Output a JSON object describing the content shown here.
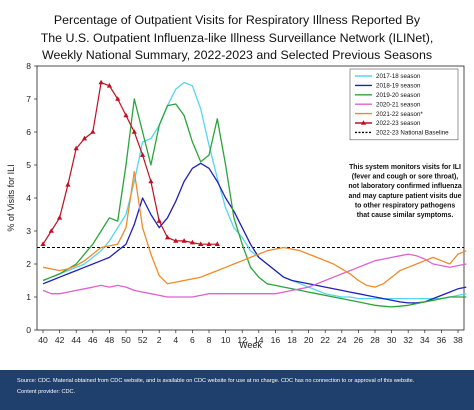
{
  "title_lines": [
    "Percentage of Outpatient Visits for Respiratory Illness Reported By",
    "The U.S. Outpatient Influenza-like Illness Surveillance Network (ILINet),",
    "Weekly National Summary, 2022-2023 and Selected Previous Seasons"
  ],
  "footer": {
    "source": "Source: CDC. Material obtained from CDC website, and is available on CDC website for use at no charge. CDC has no connection to or approval of this website.",
    "provider": "Content provider: CDC."
  },
  "colors": {
    "s2017": "#55d6f0",
    "s2018": "#2020b8",
    "s2019": "#2aa43a",
    "s2020": "#e060d0",
    "s2021": "#f08a28",
    "s2022": "#c01020",
    "baseline": "#000000",
    "footer_bg": "#1f3f6c"
  },
  "chart_data": {
    "type": "line",
    "title": "Percentage of Outpatient Visits for Respiratory Illness Reported By The U.S. Outpatient Influenza-like Illness Surveillance Network (ILINet), Weekly National Summary, 2022-2023 and Selected Previous Seasons",
    "xlabel": "Week",
    "ylabel": "% of Visits for ILI",
    "x_tick_labels": [
      "40",
      "42",
      "44",
      "46",
      "48",
      "50",
      "52",
      "2",
      "4",
      "6",
      "8",
      "10",
      "12",
      "14",
      "16",
      "18",
      "20",
      "22",
      "24",
      "26",
      "28",
      "30",
      "32",
      "34",
      "36",
      "38"
    ],
    "y_tick_labels": [
      "0",
      "1",
      "2",
      "3",
      "4",
      "5",
      "6",
      "7",
      "8"
    ],
    "ylim": [
      0,
      8
    ],
    "grid": false,
    "legend_position": "top-right",
    "note": [
      "This system monitors visits for ILI",
      "(fever and cough or sore throat),",
      "not laboratory confirmed influenza",
      "and may capture patient visits due",
      "to other respiratory pathogens",
      "that cause similar symptoms."
    ],
    "baseline": {
      "name": "2022-23 National Baseline",
      "value": 2.5
    },
    "series": [
      {
        "name": "2017-18 season",
        "key": "s2017",
        "marker": false,
        "values": [
          1.5,
          1.6,
          1.7,
          1.8,
          1.9,
          2.0,
          2.2,
          2.4,
          2.7,
          3.1,
          3.5,
          4.5,
          5.7,
          5.8,
          6.2,
          6.8,
          7.3,
          7.5,
          7.4,
          6.7,
          5.6,
          4.6,
          3.7,
          3.1,
          2.8,
          2.4,
          2.2,
          2.0,
          1.8,
          1.6,
          1.5,
          1.4,
          1.3,
          1.2,
          1.1,
          1.05,
          1.0,
          1.0,
          0.95,
          0.95,
          0.95,
          0.95,
          0.95,
          0.95,
          0.95,
          0.95,
          0.95,
          0.95,
          0.95,
          1.0,
          1.05,
          1.1
        ]
      },
      {
        "name": "2018-19 season",
        "key": "s2018",
        "marker": false,
        "values": [
          1.4,
          1.5,
          1.6,
          1.7,
          1.8,
          1.9,
          2.0,
          2.1,
          2.2,
          2.4,
          2.6,
          3.2,
          4.0,
          3.5,
          3.1,
          3.4,
          3.9,
          4.5,
          4.9,
          5.05,
          4.9,
          4.5,
          4.0,
          3.6,
          3.1,
          2.6,
          2.2,
          2.0,
          1.8,
          1.6,
          1.5,
          1.45,
          1.4,
          1.35,
          1.3,
          1.25,
          1.2,
          1.15,
          1.1,
          1.05,
          1.0,
          0.95,
          0.9,
          0.85,
          0.82,
          0.82,
          0.85,
          0.95,
          1.05,
          1.15,
          1.25,
          1.3
        ]
      },
      {
        "name": "2019-20 season",
        "key": "s2019",
        "marker": false,
        "values": [
          1.5,
          1.6,
          1.7,
          1.85,
          2.0,
          2.3,
          2.6,
          3.0,
          3.4,
          3.3,
          5.0,
          7.0,
          6.0,
          5.0,
          6.2,
          6.8,
          6.85,
          6.5,
          5.7,
          5.1,
          5.3,
          6.4,
          5.0,
          3.4,
          2.6,
          1.9,
          1.6,
          1.4,
          1.35,
          1.3,
          1.25,
          1.2,
          1.15,
          1.1,
          1.05,
          1.0,
          0.95,
          0.9,
          0.85,
          0.8,
          0.75,
          0.72,
          0.7,
          0.72,
          0.75,
          0.8,
          0.85,
          0.9,
          0.95,
          1.0,
          1.0,
          1.0
        ]
      },
      {
        "name": "2020-21 season",
        "key": "s2020",
        "marker": false,
        "values": [
          1.2,
          1.1,
          1.1,
          1.15,
          1.2,
          1.25,
          1.3,
          1.35,
          1.3,
          1.35,
          1.3,
          1.2,
          1.15,
          1.1,
          1.05,
          1.0,
          1.0,
          1.0,
          1.0,
          1.05,
          1.1,
          1.1,
          1.1,
          1.1,
          1.1,
          1.1,
          1.1,
          1.1,
          1.1,
          1.15,
          1.2,
          1.25,
          1.3,
          1.4,
          1.5,
          1.6,
          1.7,
          1.8,
          1.9,
          2.0,
          2.1,
          2.15,
          2.2,
          2.25,
          2.3,
          2.25,
          2.15,
          2.0,
          1.95,
          1.9,
          1.95,
          2.0
        ]
      },
      {
        "name": "2021-22 season*",
        "key": "s2021",
        "marker": false,
        "values": [
          1.9,
          1.85,
          1.8,
          1.85,
          1.95,
          2.1,
          2.3,
          2.5,
          2.55,
          2.6,
          3.1,
          4.8,
          3.1,
          2.3,
          1.65,
          1.4,
          1.45,
          1.5,
          1.55,
          1.6,
          1.7,
          1.8,
          1.9,
          2.0,
          2.1,
          2.2,
          2.3,
          2.4,
          2.45,
          2.5,
          2.45,
          2.4,
          2.3,
          2.2,
          2.1,
          2.0,
          1.85,
          1.7,
          1.5,
          1.35,
          1.3,
          1.4,
          1.6,
          1.8,
          1.9,
          2.0,
          2.1,
          2.2,
          2.1,
          2.0,
          2.3,
          2.4
        ]
      },
      {
        "name": "2022-23 season",
        "key": "s2022",
        "marker": true,
        "values": [
          2.6,
          3.0,
          3.4,
          4.4,
          5.5,
          5.8,
          6.0,
          7.5,
          7.4,
          7.0,
          6.5,
          6.0,
          5.3,
          4.5,
          3.3,
          2.8,
          2.7,
          2.7,
          2.65,
          2.6,
          2.6,
          2.6
        ]
      }
    ]
  }
}
